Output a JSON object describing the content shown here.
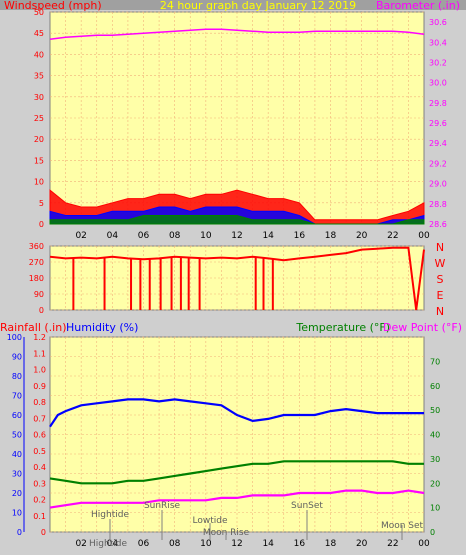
{
  "header": {
    "left_label": "Windspeed (mph)",
    "title": "24 hour graph day   January 12 2019",
    "right_label": "Barometer (.in)"
  },
  "colors": {
    "panel_bg": "#ffffa8",
    "outer_bg": "#cfcfcf",
    "grid": "#f2b27a",
    "wind_max": "#ff0000",
    "wind_avg": "#0000ff",
    "wind_low": "#008000",
    "barometer": "#ff00ff",
    "direction": "#ff0000",
    "humidity": "#0000ff",
    "temperature": "#008000",
    "dewpoint": "#ff00ff",
    "title_color": "#ffff00"
  },
  "x_ticks": [
    "02",
    "04",
    "06",
    "08",
    "10",
    "12",
    "14",
    "16",
    "18",
    "20",
    "22",
    "00"
  ],
  "panel_direction": {
    "y_ticks": [
      "360",
      "270",
      "180",
      "90",
      "0"
    ],
    "compass": [
      "N",
      "W",
      "S",
      "E",
      "N"
    ]
  },
  "panel_bottom": {
    "rain_label": "Rainfall (.in)",
    "humidity_label": "Humidity (%)",
    "temp_label": "Temperature (°F)",
    "dew_label": "Dew Point (°F)",
    "annotations": [
      "Hightide",
      "SunRise",
      "Lowtide",
      "Moon Rise",
      "SunSet",
      "Moon Set",
      "Hightide"
    ]
  },
  "chart_data": [
    {
      "type": "line",
      "title": "24 hour graph day   January 12 2019",
      "xlabel": "",
      "x_range": [
        0,
        24
      ],
      "left_axis": {
        "label": "Windspeed (mph)",
        "range": [
          0,
          50
        ],
        "ticks": [
          0,
          5,
          10,
          15,
          20,
          25,
          30,
          35,
          40,
          45,
          50
        ]
      },
      "right_axis": {
        "label": "Barometer (.in)",
        "range": [
          28.6,
          30.7
        ],
        "ticks": [
          28.6,
          28.8,
          29.0,
          29.2,
          29.4,
          29.6,
          29.8,
          30.0,
          30.2,
          30.4,
          30.6
        ]
      },
      "series": [
        {
          "name": "Barometer",
          "axis": "right",
          "x": [
            0,
            1,
            2,
            3,
            4,
            5,
            6,
            7,
            8,
            9,
            10,
            11,
            12,
            13,
            14,
            15,
            16,
            17,
            18,
            19,
            20,
            21,
            22,
            23,
            24
          ],
          "values": [
            30.43,
            30.45,
            30.46,
            30.47,
            30.47,
            30.48,
            30.49,
            30.5,
            30.51,
            30.52,
            30.53,
            30.53,
            30.52,
            30.51,
            30.5,
            30.5,
            30.5,
            30.51,
            30.51,
            30.51,
            30.51,
            30.51,
            30.51,
            30.5,
            30.48
          ]
        },
        {
          "axis": "left",
          "x": [
            0,
            1,
            2,
            3,
            4,
            5,
            6,
            7,
            8,
            9,
            10,
            11,
            12,
            13,
            14,
            15,
            16,
            17,
            18,
            19,
            20,
            21,
            22,
            23,
            24
          ],
          "values": [
            8,
            5,
            4,
            4,
            5,
            6,
            6,
            7,
            7,
            6,
            7,
            7,
            8,
            7,
            6,
            6,
            5,
            1,
            1,
            1,
            1,
            1,
            2,
            3,
            5
          ]
        },
        {
          "axis": "left",
          "x": [
            0,
            1,
            2,
            3,
            4,
            5,
            6,
            7,
            8,
            9,
            10,
            11,
            12,
            13,
            14,
            15,
            16,
            17,
            18,
            19,
            20,
            21,
            22,
            23,
            24
          ],
          "values": [
            3,
            2,
            2,
            2,
            3,
            3,
            3,
            4,
            4,
            3,
            4,
            4,
            4,
            3,
            3,
            3,
            2,
            0,
            0,
            0,
            0,
            0,
            1,
            1,
            2
          ]
        },
        {
          "axis": "left",
          "x": [
            0,
            1,
            2,
            3,
            4,
            5,
            6,
            7,
            8,
            9,
            10,
            11,
            12,
            13,
            14,
            15,
            16,
            17,
            18,
            19,
            20,
            21,
            22,
            23,
            24
          ],
          "values": [
            1,
            1,
            1,
            1,
            1,
            1,
            2,
            2,
            2,
            2,
            2,
            2,
            2,
            1,
            1,
            1,
            1,
            0,
            0,
            0,
            0,
            0,
            0,
            1,
            1
          ]
        }
      ],
      "grid": true
    },
    {
      "type": "line",
      "x_range": [
        0,
        24
      ],
      "y_axis": {
        "range": [
          0,
          360
        ],
        "ticks": [
          0,
          90,
          180,
          270,
          360
        ]
      },
      "series": [
        {
          "axis": "left",
          "x": [
            0,
            1,
            2,
            3,
            4,
            5,
            6,
            7,
            8,
            9,
            10,
            11,
            12,
            13,
            14,
            15,
            16,
            17,
            18,
            19,
            20,
            21,
            22,
            23,
            23.5,
            24
          ],
          "values": [
            300,
            290,
            295,
            290,
            300,
            290,
            285,
            290,
            300,
            295,
            290,
            295,
            290,
            300,
            290,
            280,
            290,
            300,
            310,
            320,
            340,
            345,
            350,
            350,
            0,
            340
          ]
        }
      ]
    },
    {
      "type": "line",
      "x_range": [
        0,
        24
      ],
      "left_axis": {
        "label": "Humidity (%)",
        "range": [
          0,
          100
        ],
        "ticks": [
          0,
          10,
          20,
          30,
          40,
          50,
          60,
          70,
          80,
          90,
          100
        ]
      },
      "left_axis_2": {
        "label": "Rainfall (.in)",
        "range": [
          0,
          1.2
        ],
        "ticks": [
          0,
          0.1,
          0.2,
          0.3,
          0.4,
          0.5,
          0.6,
          0.7,
          0.8,
          0.9,
          1.0,
          1.1,
          1.2
        ]
      },
      "right_axis": {
        "label": "Temperature (°F)",
        "range": [
          0,
          80
        ],
        "ticks": [
          0,
          10,
          20,
          30,
          40,
          50,
          60,
          70
        ]
      },
      "series": [
        {
          "name": "Humidity",
          "axis": "left",
          "x": [
            0,
            0.5,
            1,
            2,
            3,
            4,
            5,
            6,
            7,
            8,
            9,
            10,
            11,
            12,
            13,
            14,
            15,
            16,
            17,
            18,
            19,
            20,
            21,
            22,
            23,
            24
          ],
          "values": [
            54,
            60,
            62,
            65,
            66,
            67,
            68,
            68,
            67,
            68,
            67,
            66,
            65,
            60,
            57,
            58,
            60,
            60,
            60,
            62,
            63,
            62,
            61,
            61,
            61,
            61
          ]
        },
        {
          "name": "Temperature",
          "axis": "right",
          "x": [
            0,
            1,
            2,
            3,
            4,
            5,
            6,
            7,
            8,
            9,
            10,
            11,
            12,
            13,
            14,
            15,
            16,
            17,
            18,
            19,
            20,
            21,
            22,
            23,
            24
          ],
          "values": [
            22,
            21,
            20,
            20,
            20,
            21,
            21,
            22,
            23,
            24,
            25,
            26,
            27,
            28,
            28,
            29,
            29,
            29,
            29,
            29,
            29,
            29,
            29,
            28,
            28
          ]
        },
        {
          "name": "Dew Point",
          "axis": "right",
          "x": [
            0,
            1,
            2,
            3,
            4,
            5,
            6,
            7,
            8,
            9,
            10,
            11,
            12,
            13,
            14,
            15,
            16,
            17,
            18,
            19,
            20,
            21,
            22,
            23,
            24
          ],
          "values": [
            10,
            11,
            12,
            12,
            12,
            12,
            12,
            13,
            13,
            13,
            13,
            14,
            14,
            15,
            15,
            15,
            16,
            16,
            16,
            17,
            17,
            16,
            16,
            17,
            16
          ]
        }
      ]
    }
  ]
}
